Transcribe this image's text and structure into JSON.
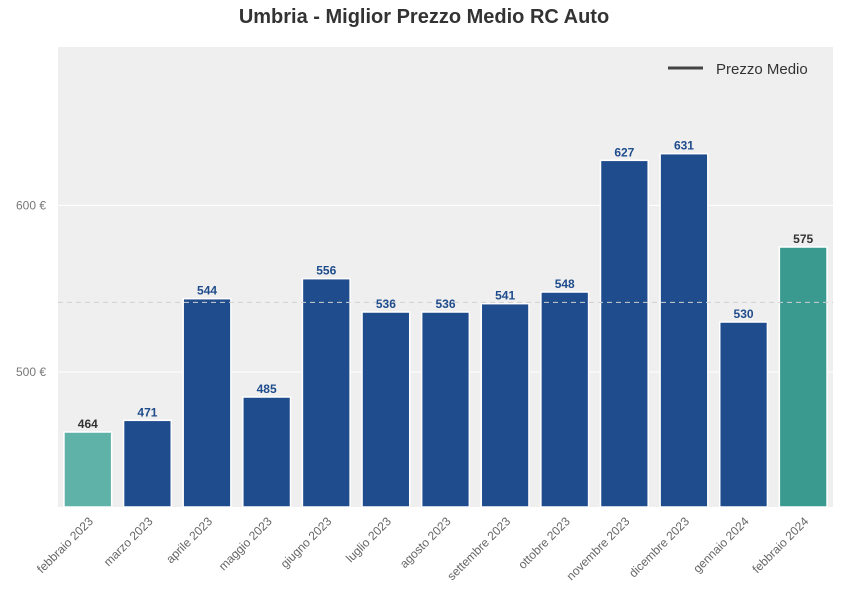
{
  "chart_data": {
    "type": "bar",
    "title": "Umbria - Miglior Prezzo Medio RC Auto",
    "xlabel": "",
    "ylabel": "",
    "categories": [
      "febbraio 2023",
      "marzo 2023",
      "aprile 2023",
      "maggio 2023",
      "giugno 2023",
      "luglio 2023",
      "agosto 2023",
      "settembre 2023",
      "ottobre 2023",
      "novembre 2023",
      "dicembre 2023",
      "gennaio 2024",
      "febbraio 2024"
    ],
    "values": [
      464,
      471,
      544,
      485,
      556,
      536,
      536,
      541,
      548,
      627,
      631,
      530,
      575
    ],
    "value_labels": [
      "464",
      "471",
      "544",
      "485",
      "556",
      "536",
      "536",
      "541",
      "548",
      "627",
      "631",
      "530",
      "575"
    ],
    "ylim": [
      419,
      695
    ],
    "yticks": [
      500,
      600
    ],
    "ytick_labels": [
      "500 €",
      "600 €"
    ],
    "mean_line": 541.8,
    "legend": {
      "label": "Prezzo Medio",
      "position": "top-right"
    },
    "grid": true,
    "colors": {
      "main": "#1f4c8c",
      "first": "#5fb2a8",
      "last": "#3a9a90",
      "label_main": "#1f4c8c",
      "label_edge": "#333333",
      "background": "#efefef"
    }
  }
}
